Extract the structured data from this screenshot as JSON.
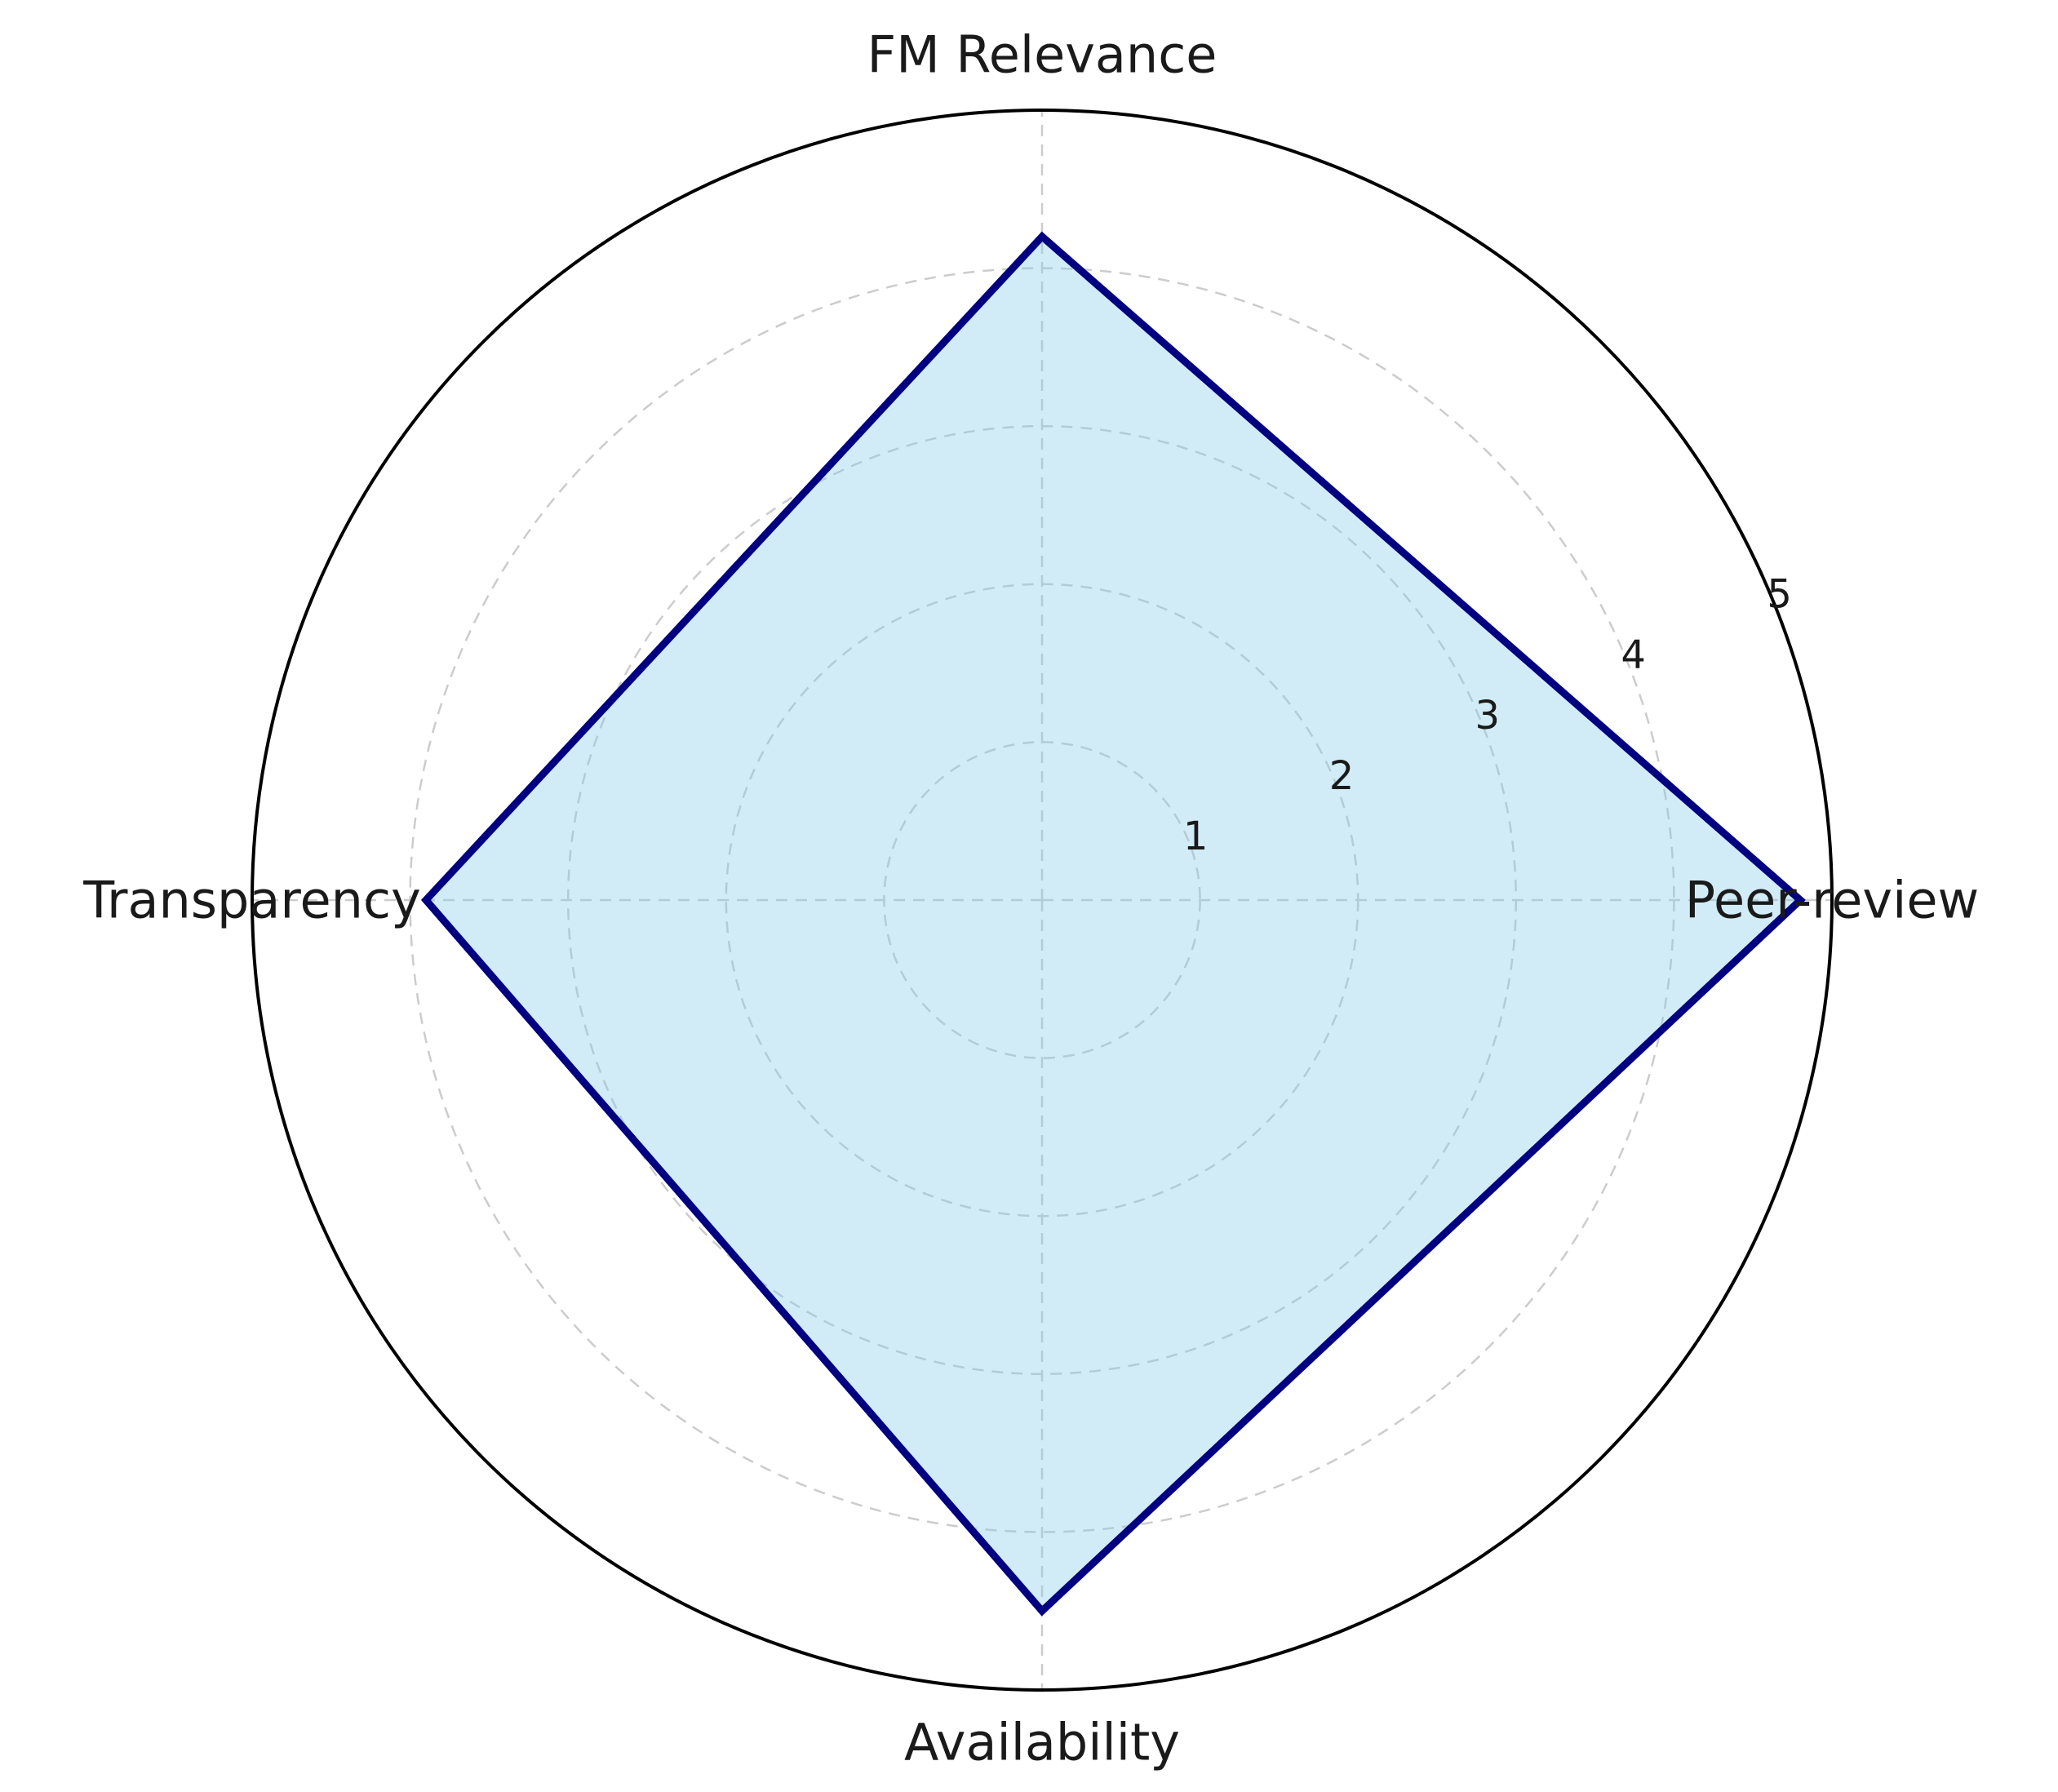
{
  "chart_data": {
    "type": "radar",
    "title": "",
    "categories": [
      "Peer-review",
      "FM Relevance",
      "Transparency",
      "Availability"
    ],
    "series": [
      {
        "values": [
          4.8,
          4.2,
          3.9,
          4.5
        ]
      }
    ],
    "r_ticks": [
      "1",
      "2",
      "3",
      "4",
      "5"
    ],
    "r_range": [
      0,
      5
    ],
    "grid": true,
    "colors": {
      "fill": "#87ceeb",
      "fill_opacity": 0.38,
      "line": "#000080",
      "grid": "#cccccc",
      "outer_ring": "#000000"
    }
  }
}
